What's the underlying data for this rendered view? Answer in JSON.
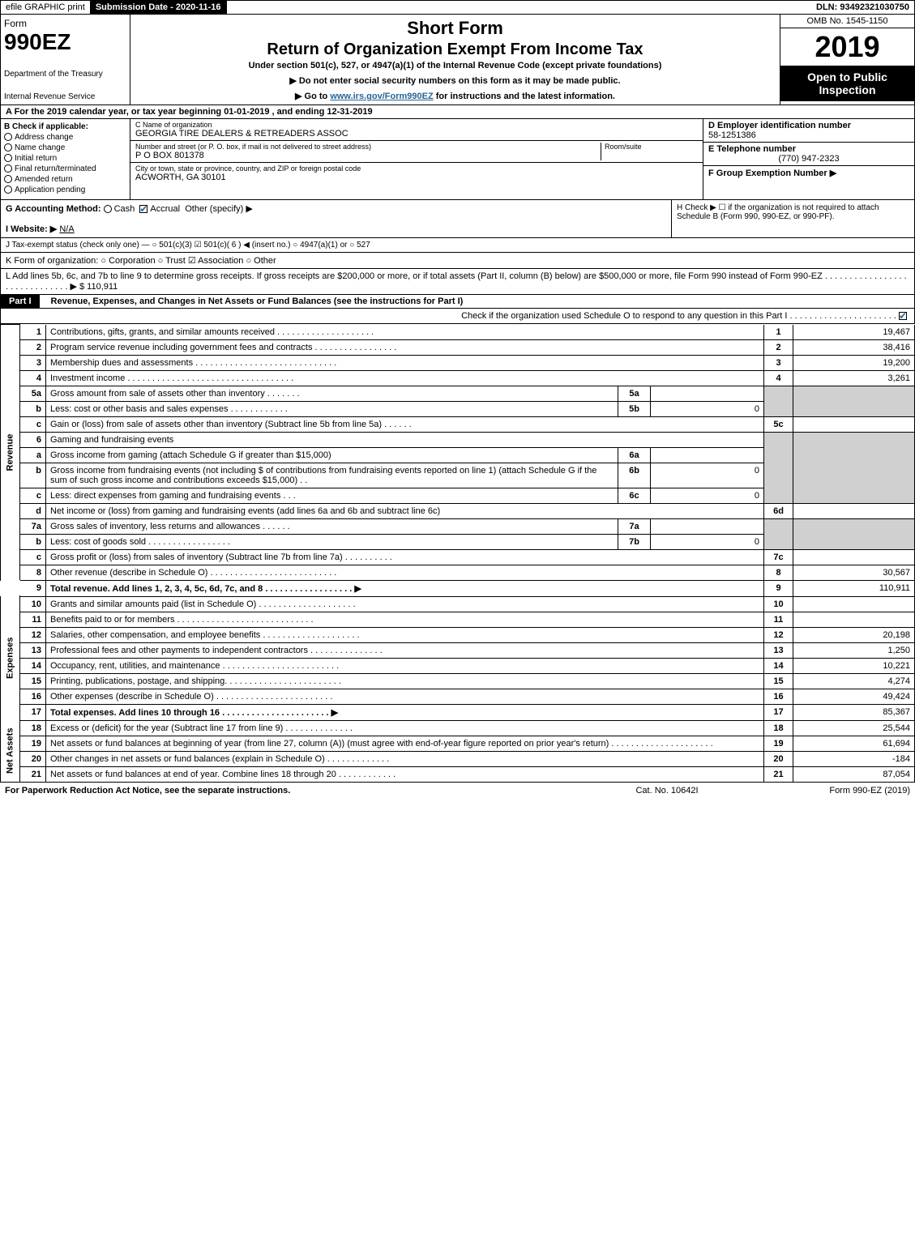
{
  "topbar": {
    "efile": "efile GRAPHIC print",
    "submission_label": "Submission Date - 2020-11-16",
    "dln": "DLN: 93492321030750"
  },
  "header": {
    "form_word": "Form",
    "form_num": "990EZ",
    "dept": "Department of the Treasury",
    "irs": "Internal Revenue Service",
    "title": "Short Form",
    "subtitle": "Return of Organization Exempt From Income Tax",
    "undersec": "Under section 501(c), 527, or 4947(a)(1) of the Internal Revenue Code (except private foundations)",
    "note1": "▶ Do not enter social security numbers on this form as it may be made public.",
    "note2_pre": "▶ Go to ",
    "note2_link": "www.irs.gov/Form990EZ",
    "note2_post": " for instructions and the latest information.",
    "omb": "OMB No. 1545-1150",
    "year": "2019",
    "open": "Open to Public Inspection"
  },
  "line_a": "A For the 2019 calendar year, or tax year beginning 01-01-2019 , and ending 12-31-2019",
  "box_b": {
    "label": "B Check if applicable:",
    "opts": [
      "Address change",
      "Name change",
      "Initial return",
      "Final return/terminated",
      "Amended return",
      "Application pending"
    ]
  },
  "box_c": {
    "name_label": "C Name of organization",
    "name": "GEORGIA TIRE DEALERS & RETREADERS ASSOC",
    "street_label": "Number and street (or P. O. box, if mail is not delivered to street address)",
    "street": "P O BOX 801378",
    "room_label": "Room/suite",
    "city_label": "City or town, state or province, country, and ZIP or foreign postal code",
    "city": "ACWORTH, GA  30101"
  },
  "box_d": {
    "label": "D Employer identification number",
    "val": "58-1251386"
  },
  "box_e": {
    "label": "E Telephone number",
    "val": "(770) 947-2323"
  },
  "box_f": {
    "label": "F Group Exemption Number ▶"
  },
  "line_g": {
    "label": "G Accounting Method:",
    "cash": "Cash",
    "accrual": "Accrual",
    "other": "Other (specify) ▶"
  },
  "line_h": "H  Check ▶ ☐ if the organization is not required to attach Schedule B (Form 990, 990-EZ, or 990-PF).",
  "line_i": {
    "label": "I Website: ▶",
    "val": "N/A"
  },
  "line_j": "J Tax-exempt status (check only one) — ○ 501(c)(3)  ☑ 501(c)( 6 ) ◀ (insert no.)  ○ 4947(a)(1) or  ○ 527",
  "line_k": "K Form of organization:   ○ Corporation   ○ Trust   ☑ Association   ○ Other",
  "line_l": {
    "text": "L Add lines 5b, 6c, and 7b to line 9 to determine gross receipts. If gross receipts are $200,000 or more, or if total assets (Part II, column (B) below) are $500,000 or more, file Form 990 instead of Form 990-EZ  . . . . . . . . . . . . . . . . . . . . . . . . . . . . . .  ▶",
    "val": "$ 110,911"
  },
  "part1": {
    "label": "Part I",
    "title": "Revenue, Expenses, and Changes in Net Assets or Fund Balances (see the instructions for Part I)",
    "check_note": "Check if the organization used Schedule O to respond to any question in this Part I  . . . . . . . . . . . . . . . . . . . . . ."
  },
  "sidelabels": {
    "rev": "Revenue",
    "exp": "Expenses",
    "na": "Net Assets"
  },
  "revenue": {
    "l1": {
      "n": "1",
      "d": "Contributions, gifts, grants, and similar amounts received  . . . . . . . . . . . . . . . . . . . .",
      "c": "1",
      "v": "19,467"
    },
    "l2": {
      "n": "2",
      "d": "Program service revenue including government fees and contracts  . . . . . . . . . . . . . . . . .",
      "c": "2",
      "v": "38,416"
    },
    "l3": {
      "n": "3",
      "d": "Membership dues and assessments  . . . . . . . . . . . . . . . . . . . . . . . . . . . . .",
      "c": "3",
      "v": "19,200"
    },
    "l4": {
      "n": "4",
      "d": "Investment income  . . . . . . . . . . . . . . . . . . . . . . . . . . . . . . . . . .",
      "c": "4",
      "v": "3,261"
    },
    "l5a": {
      "n": "5a",
      "d": "Gross amount from sale of assets other than inventory  . . . . . . .",
      "ic": "5a",
      "iv": ""
    },
    "l5b": {
      "n": "b",
      "d": "Less: cost or other basis and sales expenses  . . . . . . . . . . . .",
      "ic": "5b",
      "iv": "0"
    },
    "l5c": {
      "n": "c",
      "d": "Gain or (loss) from sale of assets other than inventory (Subtract line 5b from line 5a)  . . . . . .",
      "c": "5c",
      "v": ""
    },
    "l6": {
      "n": "6",
      "d": "Gaming and fundraising events"
    },
    "l6a": {
      "n": "a",
      "d": "Gross income from gaming (attach Schedule G if greater than $15,000)",
      "ic": "6a",
      "iv": ""
    },
    "l6b": {
      "n": "b",
      "d": "Gross income from fundraising events (not including $                     of contributions from fundraising events reported on line 1) (attach Schedule G if the sum of such gross income and contributions exceeds $15,000)   . .",
      "ic": "6b",
      "iv": "0"
    },
    "l6c": {
      "n": "c",
      "d": "Less: direct expenses from gaming and fundraising events    . . .",
      "ic": "6c",
      "iv": "0"
    },
    "l6d": {
      "n": "d",
      "d": "Net income or (loss) from gaming and fundraising events (add lines 6a and 6b and subtract line 6c)",
      "c": "6d",
      "v": ""
    },
    "l7a": {
      "n": "7a",
      "d": "Gross sales of inventory, less returns and allowances  . . . . . .",
      "ic": "7a",
      "iv": ""
    },
    "l7b": {
      "n": "b",
      "d": "Less: cost of goods sold   . . . . . . . . . . . . . . . . .",
      "ic": "7b",
      "iv": "0"
    },
    "l7c": {
      "n": "c",
      "d": "Gross profit or (loss) from sales of inventory (Subtract line 7b from line 7a)  . . . . . . . . . .",
      "c": "7c",
      "v": ""
    },
    "l8": {
      "n": "8",
      "d": "Other revenue (describe in Schedule O)  . . . . . . . . . . . . . . . . . . . . . . . . . .",
      "c": "8",
      "v": "30,567"
    },
    "l9": {
      "n": "9",
      "d": "Total revenue. Add lines 1, 2, 3, 4, 5c, 6d, 7c, and 8  . . . . . . . . . . . . . . . . . .  ▶",
      "c": "9",
      "v": "110,911"
    }
  },
  "expenses": {
    "l10": {
      "n": "10",
      "d": "Grants and similar amounts paid (list in Schedule O)  . . . . . . . . . . . . . . . . . . . .",
      "c": "10",
      "v": ""
    },
    "l11": {
      "n": "11",
      "d": "Benefits paid to or for members   . . . . . . . . . . . . . . . . . . . . . . . . . . . .",
      "c": "11",
      "v": ""
    },
    "l12": {
      "n": "12",
      "d": "Salaries, other compensation, and employee benefits  . . . . . . . . . . . . . . . . . . . .",
      "c": "12",
      "v": "20,198"
    },
    "l13": {
      "n": "13",
      "d": "Professional fees and other payments to independent contractors  . . . . . . . . . . . . . . .",
      "c": "13",
      "v": "1,250"
    },
    "l14": {
      "n": "14",
      "d": "Occupancy, rent, utilities, and maintenance  . . . . . . . . . . . . . . . . . . . . . . . .",
      "c": "14",
      "v": "10,221"
    },
    "l15": {
      "n": "15",
      "d": "Printing, publications, postage, and shipping.  . . . . . . . . . . . . . . . . . . . . . . .",
      "c": "15",
      "v": "4,274"
    },
    "l16": {
      "n": "16",
      "d": "Other expenses (describe in Schedule O)   . . . . . . . . . . . . . . . . . . . . . . . .",
      "c": "16",
      "v": "49,424"
    },
    "l17": {
      "n": "17",
      "d": "Total expenses. Add lines 10 through 16   . . . . . . . . . . . . . . . . . . . . . .   ▶",
      "c": "17",
      "v": "85,367"
    }
  },
  "netassets": {
    "l18": {
      "n": "18",
      "d": "Excess or (deficit) for the year (Subtract line 17 from line 9)   . . . . . . . . . . . . . .",
      "c": "18",
      "v": "25,544"
    },
    "l19": {
      "n": "19",
      "d": "Net assets or fund balances at beginning of year (from line 27, column (A)) (must agree with end-of-year figure reported on prior year's return)  . . . . . . . . . . . . . . . . . . . . .",
      "c": "19",
      "v": "61,694"
    },
    "l20": {
      "n": "20",
      "d": "Other changes in net assets or fund balances (explain in Schedule O)  . . . . . . . . . . . . .",
      "c": "20",
      "v": "-184"
    },
    "l21": {
      "n": "21",
      "d": "Net assets or fund balances at end of year. Combine lines 18 through 20  . . . . . . . . . . . .",
      "c": "21",
      "v": "87,054"
    }
  },
  "footer": {
    "left": "For Paperwork Reduction Act Notice, see the separate instructions.",
    "cat": "Cat. No. 10642I",
    "right": "Form 990-EZ (2019)"
  },
  "colors": {
    "black": "#000000",
    "white": "#ffffff",
    "shade": "#d0d0d0",
    "link": "#2a6496"
  }
}
